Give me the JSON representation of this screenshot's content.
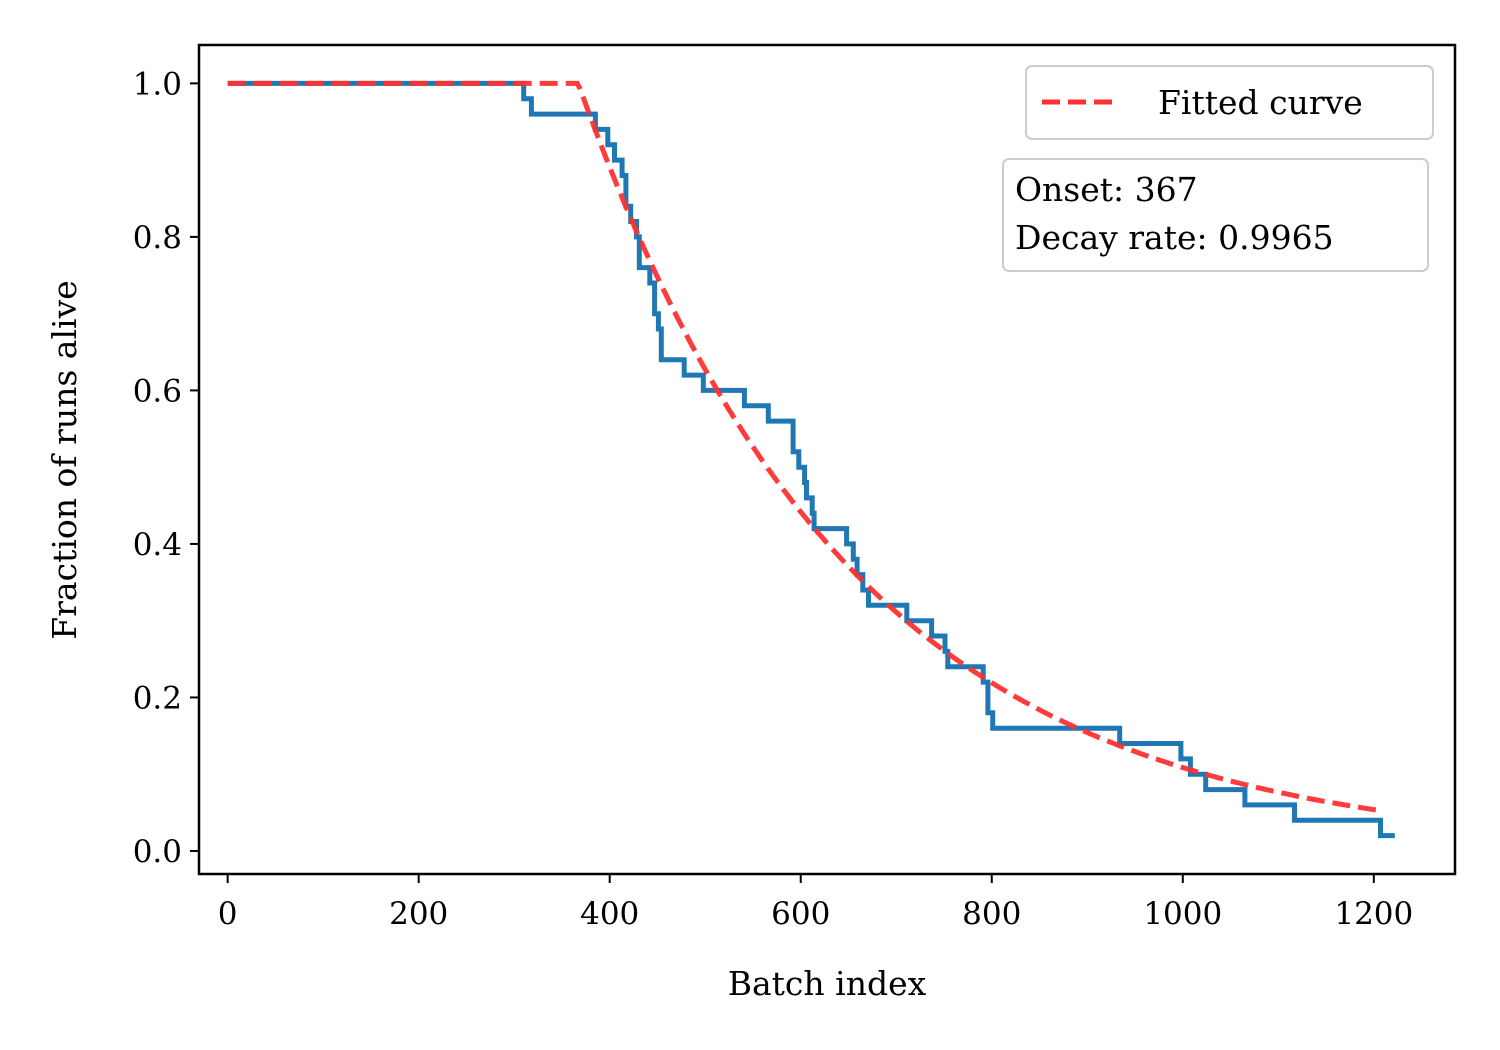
{
  "chart_data": {
    "type": "line",
    "xlabel": "Batch index",
    "ylabel": "Fraction of runs alive",
    "xlim": [
      -30,
      1285
    ],
    "ylim": [
      -0.03,
      1.05
    ],
    "xticks": [
      0,
      200,
      400,
      600,
      800,
      1000,
      1200
    ],
    "yticks": [
      0.0,
      0.2,
      0.4,
      0.6,
      0.8,
      1.0
    ],
    "xtick_labels": [
      "0",
      "200",
      "400",
      "600",
      "800",
      "1000",
      "1200"
    ],
    "ytick_labels": [
      "0.0",
      "0.2",
      "0.4",
      "0.6",
      "0.8",
      "1.0"
    ],
    "grid": false,
    "legend_position": "top-right",
    "annotation_lines": [
      "Onset: 367",
      "Decay rate: 0.9965"
    ],
    "series": [
      {
        "kind": "step",
        "color": "#1f77b4",
        "points": [
          [
            0,
            1.0
          ],
          [
            310,
            1.0
          ],
          [
            310,
            0.98
          ],
          [
            318,
            0.98
          ],
          [
            318,
            0.96
          ],
          [
            385,
            0.96
          ],
          [
            385,
            0.94
          ],
          [
            398,
            0.94
          ],
          [
            398,
            0.92
          ],
          [
            405,
            0.92
          ],
          [
            405,
            0.9
          ],
          [
            413,
            0.9
          ],
          [
            413,
            0.88
          ],
          [
            417,
            0.88
          ],
          [
            417,
            0.84
          ],
          [
            422,
            0.84
          ],
          [
            422,
            0.82
          ],
          [
            428,
            0.82
          ],
          [
            428,
            0.8
          ],
          [
            431,
            0.8
          ],
          [
            431,
            0.76
          ],
          [
            442,
            0.76
          ],
          [
            442,
            0.74
          ],
          [
            447,
            0.74
          ],
          [
            447,
            0.7
          ],
          [
            451,
            0.7
          ],
          [
            451,
            0.68
          ],
          [
            454,
            0.68
          ],
          [
            454,
            0.64
          ],
          [
            478,
            0.64
          ],
          [
            478,
            0.62
          ],
          [
            498,
            0.62
          ],
          [
            498,
            0.6
          ],
          [
            541,
            0.6
          ],
          [
            541,
            0.58
          ],
          [
            566,
            0.58
          ],
          [
            566,
            0.56
          ],
          [
            592,
            0.56
          ],
          [
            592,
            0.52
          ],
          [
            598,
            0.52
          ],
          [
            598,
            0.5
          ],
          [
            604,
            0.5
          ],
          [
            604,
            0.48
          ],
          [
            606,
            0.48
          ],
          [
            606,
            0.46
          ],
          [
            612,
            0.46
          ],
          [
            612,
            0.44
          ],
          [
            614,
            0.44
          ],
          [
            614,
            0.42
          ],
          [
            648,
            0.42
          ],
          [
            648,
            0.4
          ],
          [
            655,
            0.4
          ],
          [
            655,
            0.38
          ],
          [
            659,
            0.38
          ],
          [
            659,
            0.36
          ],
          [
            665,
            0.36
          ],
          [
            665,
            0.34
          ],
          [
            671,
            0.34
          ],
          [
            671,
            0.32
          ],
          [
            711,
            0.32
          ],
          [
            711,
            0.3
          ],
          [
            737,
            0.3
          ],
          [
            737,
            0.28
          ],
          [
            751,
            0.28
          ],
          [
            751,
            0.26
          ],
          [
            754,
            0.26
          ],
          [
            754,
            0.24
          ],
          [
            791,
            0.24
          ],
          [
            791,
            0.22
          ],
          [
            796,
            0.22
          ],
          [
            796,
            0.18
          ],
          [
            801,
            0.18
          ],
          [
            801,
            0.16
          ],
          [
            934,
            0.16
          ],
          [
            934,
            0.14
          ],
          [
            998,
            0.14
          ],
          [
            998,
            0.12
          ],
          [
            1008,
            0.12
          ],
          [
            1008,
            0.1
          ],
          [
            1024,
            0.1
          ],
          [
            1024,
            0.08
          ],
          [
            1065,
            0.08
          ],
          [
            1065,
            0.06
          ],
          [
            1117,
            0.06
          ],
          [
            1117,
            0.04
          ],
          [
            1207,
            0.04
          ],
          [
            1207,
            0.02
          ],
          [
            1222,
            0.02
          ]
        ]
      },
      {
        "name": "Fitted curve",
        "kind": "fit",
        "color": "#ff3030",
        "onset": 367,
        "decay_rate": 0.9965,
        "x_start": 0,
        "x_end": 1207
      }
    ]
  }
}
